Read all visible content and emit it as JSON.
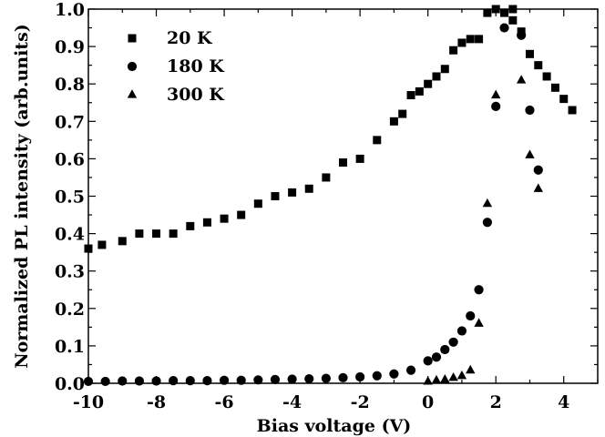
{
  "chart_data": {
    "type": "scatter",
    "xlabel": "Bias voltage (V)",
    "ylabel": "Normalized PL intensity (arb.units)",
    "xlim": [
      -10,
      5
    ],
    "ylim": [
      0,
      1.0
    ],
    "x_ticks": [
      -10,
      -8,
      -6,
      -4,
      -2,
      0,
      2,
      4
    ],
    "y_ticks": [
      0.0,
      0.1,
      0.2,
      0.3,
      0.4,
      0.5,
      0.6,
      0.7,
      0.8,
      0.9,
      1.0
    ],
    "x_tick_labels": [
      "-10",
      "-8",
      "-6",
      "-4",
      "-2",
      "0",
      "2",
      "4"
    ],
    "y_tick_labels": [
      "0.0",
      "0.1",
      "0.2",
      "0.3",
      "0.4",
      "0.5",
      "0.6",
      "0.7",
      "0.8",
      "0.9",
      "1.0"
    ],
    "legend_position": "top-left",
    "grid": false,
    "series": [
      {
        "name": "20 K",
        "marker": "square",
        "points": [
          [
            -10,
            0.36
          ],
          [
            -9.6,
            0.37
          ],
          [
            -9.0,
            0.38
          ],
          [
            -8.5,
            0.4
          ],
          [
            -8.0,
            0.4
          ],
          [
            -7.5,
            0.4
          ],
          [
            -7.0,
            0.42
          ],
          [
            -6.5,
            0.43
          ],
          [
            -6.0,
            0.44
          ],
          [
            -5.5,
            0.45
          ],
          [
            -5.0,
            0.48
          ],
          [
            -4.5,
            0.5
          ],
          [
            -4.0,
            0.51
          ],
          [
            -3.5,
            0.52
          ],
          [
            -3.0,
            0.55
          ],
          [
            -2.5,
            0.59
          ],
          [
            -2.0,
            0.6
          ],
          [
            -1.5,
            0.65
          ],
          [
            -1.0,
            0.7
          ],
          [
            -0.75,
            0.72
          ],
          [
            -0.5,
            0.77
          ],
          [
            -0.25,
            0.78
          ],
          [
            0.0,
            0.8
          ],
          [
            0.25,
            0.82
          ],
          [
            0.5,
            0.84
          ],
          [
            0.75,
            0.89
          ],
          [
            1.0,
            0.91
          ],
          [
            1.25,
            0.92
          ],
          [
            1.5,
            0.92
          ],
          [
            1.75,
            0.99
          ],
          [
            2.0,
            1.0
          ],
          [
            2.25,
            0.99
          ],
          [
            2.5,
            0.97
          ],
          [
            2.5,
            1.0
          ],
          [
            2.75,
            0.94
          ],
          [
            3.0,
            0.88
          ],
          [
            3.25,
            0.85
          ],
          [
            3.5,
            0.82
          ],
          [
            3.75,
            0.79
          ],
          [
            4.0,
            0.76
          ],
          [
            4.25,
            0.73
          ]
        ]
      },
      {
        "name": "180 K",
        "marker": "circle",
        "points": [
          [
            -10,
            0.005
          ],
          [
            -9.5,
            0.005
          ],
          [
            -9.0,
            0.006
          ],
          [
            -8.5,
            0.006
          ],
          [
            -8.0,
            0.006
          ],
          [
            -7.5,
            0.007
          ],
          [
            -7.0,
            0.007
          ],
          [
            -6.5,
            0.007
          ],
          [
            -6.0,
            0.008
          ],
          [
            -5.5,
            0.008
          ],
          [
            -5.0,
            0.009
          ],
          [
            -4.5,
            0.01
          ],
          [
            -4.0,
            0.011
          ],
          [
            -3.5,
            0.012
          ],
          [
            -3.0,
            0.013
          ],
          [
            -2.5,
            0.015
          ],
          [
            -2.0,
            0.017
          ],
          [
            -1.5,
            0.02
          ],
          [
            -1.0,
            0.025
          ],
          [
            -0.5,
            0.035
          ],
          [
            0.0,
            0.06
          ],
          [
            0.25,
            0.07
          ],
          [
            0.5,
            0.09
          ],
          [
            0.75,
            0.11
          ],
          [
            1.0,
            0.14
          ],
          [
            1.25,
            0.18
          ],
          [
            1.5,
            0.25
          ],
          [
            1.75,
            0.43
          ],
          [
            2.0,
            0.74
          ],
          [
            2.25,
            0.95
          ],
          [
            2.75,
            0.93
          ],
          [
            3.0,
            0.73
          ],
          [
            3.25,
            0.57
          ]
        ]
      },
      {
        "name": "300 K",
        "marker": "triangle",
        "points": [
          [
            0.0,
            0.005
          ],
          [
            0.25,
            0.008
          ],
          [
            0.5,
            0.01
          ],
          [
            0.75,
            0.015
          ],
          [
            1.0,
            0.02
          ],
          [
            1.25,
            0.035
          ],
          [
            1.5,
            0.16
          ],
          [
            1.75,
            0.48
          ],
          [
            2.0,
            0.77
          ],
          [
            2.75,
            0.81
          ],
          [
            3.0,
            0.61
          ],
          [
            3.25,
            0.52
          ]
        ]
      }
    ]
  }
}
